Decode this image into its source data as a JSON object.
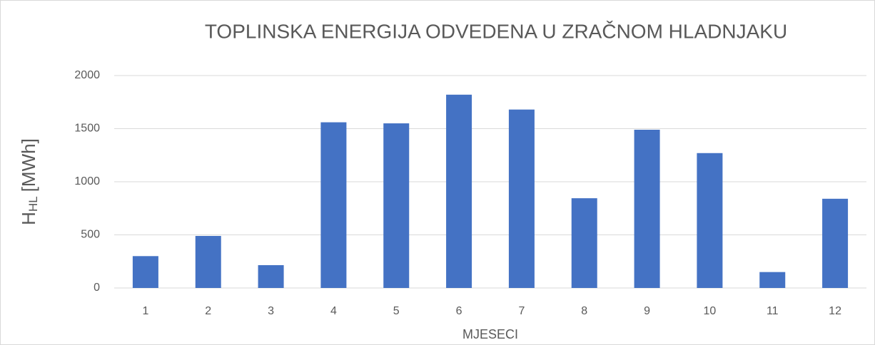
{
  "chart_data": {
    "type": "bar",
    "title": "TOPLINSKA ENERGIJA ODVEDENA U ZRAČNOM HLADNJAKU",
    "x_label": "MJESECI",
    "y_label": {
      "symbol": "H",
      "subscript": "HL",
      "unit": "[MWh]"
    },
    "categories": [
      "1",
      "2",
      "3",
      "4",
      "5",
      "6",
      "7",
      "8",
      "9",
      "10",
      "11",
      "12"
    ],
    "values": [
      300,
      490,
      215,
      1560,
      1550,
      1820,
      1680,
      845,
      1490,
      1270,
      150,
      840
    ],
    "color": "#4472c4",
    "ylim": [
      0,
      2000
    ],
    "yticks": [
      0,
      500,
      1000,
      1500,
      2000
    ],
    "grid": true
  }
}
